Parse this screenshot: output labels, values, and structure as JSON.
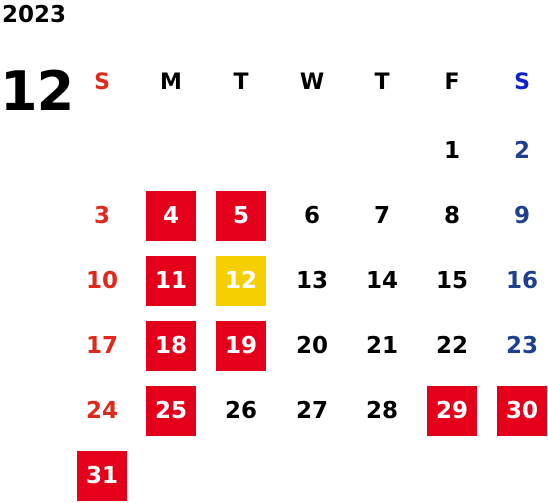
{
  "header": {
    "year": "2023",
    "month": "12"
  },
  "weekdays": [
    "S",
    "M",
    "T",
    "W",
    "T",
    "F",
    "S"
  ],
  "days": [
    {
      "n": "1"
    },
    {
      "n": "2"
    },
    {
      "n": "3"
    },
    {
      "n": "4",
      "hl": "red"
    },
    {
      "n": "5",
      "hl": "red"
    },
    {
      "n": "6"
    },
    {
      "n": "7"
    },
    {
      "n": "8"
    },
    {
      "n": "9"
    },
    {
      "n": "10"
    },
    {
      "n": "11",
      "hl": "red"
    },
    {
      "n": "12",
      "hl": "yellow"
    },
    {
      "n": "13"
    },
    {
      "n": "14"
    },
    {
      "n": "15"
    },
    {
      "n": "16"
    },
    {
      "n": "17"
    },
    {
      "n": "18",
      "hl": "red"
    },
    {
      "n": "19",
      "hl": "red"
    },
    {
      "n": "20"
    },
    {
      "n": "21"
    },
    {
      "n": "22"
    },
    {
      "n": "23"
    },
    {
      "n": "24"
    },
    {
      "n": "25",
      "hl": "red"
    },
    {
      "n": "26"
    },
    {
      "n": "27"
    },
    {
      "n": "28"
    },
    {
      "n": "29",
      "hl": "red"
    },
    {
      "n": "30",
      "hl": "red"
    },
    {
      "n": "31",
      "hl": "red"
    }
  ],
  "first_weekday_index": 5,
  "colors": {
    "holiday_red": "#e4001b",
    "today_yellow": "#f5cf00",
    "sunday": "#e0281b",
    "saturday": "#1f3f8f"
  }
}
